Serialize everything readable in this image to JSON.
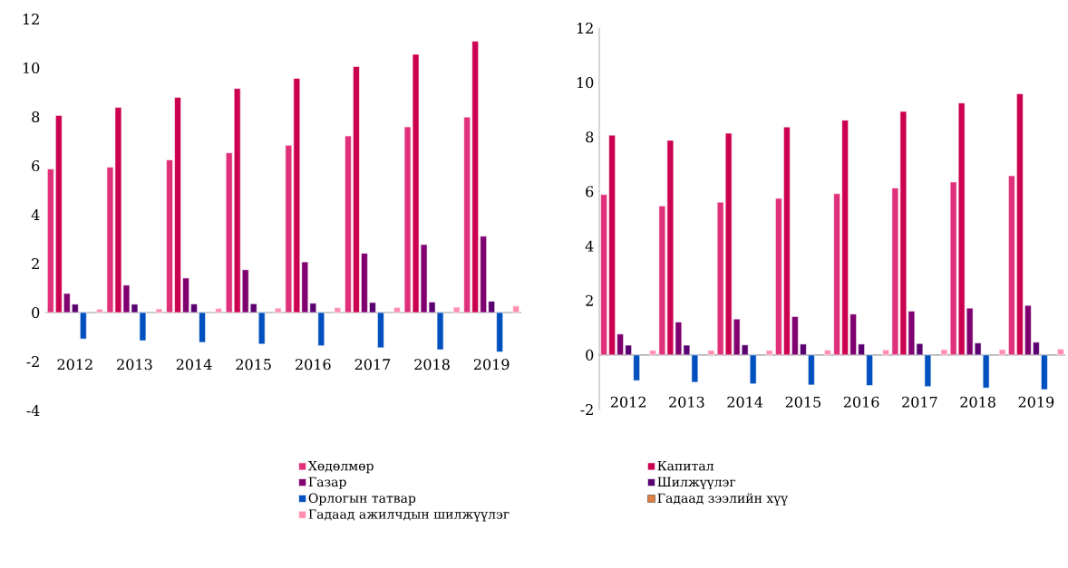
{
  "chart_data": [
    {
      "type": "bar",
      "categories": [
        "2012",
        "2013",
        "2014",
        "2015",
        "2016",
        "2017",
        "2018",
        "2019"
      ],
      "ylim": [
        -4,
        12
      ],
      "yticks": [
        -4,
        -2,
        0,
        2,
        4,
        6,
        8,
        10,
        12
      ],
      "legend": "bottom",
      "series": [
        {
          "name": "Хөдөлмөр",
          "color": "#e0307a",
          "values": [
            5.87,
            5.94,
            6.24,
            6.53,
            6.84,
            7.22,
            7.59,
            7.99
          ]
        },
        {
          "name": "Капитал",
          "color": "#cc0050",
          "values": [
            8.06,
            8.39,
            8.8,
            9.16,
            9.57,
            10.06,
            10.56,
            11.09
          ]
        },
        {
          "name": "Газар",
          "color": "#800070",
          "values": [
            0.78,
            1.12,
            1.41,
            1.75,
            2.07,
            2.42,
            2.78,
            3.12
          ]
        },
        {
          "name": "Шилжүүлэг",
          "color": "#5a0070",
          "values": [
            0.34,
            0.34,
            0.35,
            0.36,
            0.38,
            0.41,
            0.43,
            0.46
          ]
        },
        {
          "name": "Орлогын татвар",
          "color": "#0050c0",
          "values": [
            -1.08,
            -1.15,
            -1.22,
            -1.29,
            -1.36,
            -1.44,
            -1.52,
            -1.61
          ]
        },
        {
          "name": "Гадаад зээлийн хүү",
          "color": "#e08040",
          "values": [
            null,
            null,
            null,
            null,
            null,
            null,
            null,
            null
          ]
        },
        {
          "name": "Гадаад ажилчдын шилжүүлэг",
          "color": "#ff8fb0",
          "values": [
            0.14,
            0.15,
            0.17,
            0.18,
            0.2,
            0.21,
            0.22,
            0.27
          ]
        }
      ]
    },
    {
      "type": "bar",
      "categories": [
        "2012",
        "2013",
        "2014",
        "2015",
        "2016",
        "2017",
        "2018",
        "2019"
      ],
      "ylim": [
        -2,
        12
      ],
      "yticks": [
        -2,
        0,
        2,
        4,
        6,
        8,
        10,
        12
      ],
      "series": [
        {
          "color": "#e0307a",
          "values": [
            5.89,
            5.47,
            5.61,
            5.75,
            5.92,
            6.13,
            6.35,
            6.58
          ]
        },
        {
          "color": "#cc0050",
          "values": [
            8.07,
            7.88,
            8.14,
            8.37,
            8.62,
            8.94,
            9.25,
            9.59
          ]
        },
        {
          "color": "#800070",
          "values": [
            0.77,
            1.21,
            1.32,
            1.41,
            1.5,
            1.61,
            1.72,
            1.82
          ]
        },
        {
          "color": "#5a0070",
          "values": [
            0.36,
            0.36,
            0.37,
            0.4,
            0.4,
            0.42,
            0.44,
            0.47
          ]
        },
        {
          "color": "#0050c0",
          "values": [
            -0.94,
            -1.0,
            -1.06,
            -1.1,
            -1.12,
            -1.16,
            -1.21,
            -1.27
          ]
        },
        {
          "color": "#e08040",
          "values": [
            null,
            null,
            null,
            null,
            null,
            null,
            null,
            null
          ]
        },
        {
          "color": "#ff8fb0",
          "values": [
            0.17,
            0.17,
            0.17,
            0.18,
            0.19,
            0.2,
            0.2,
            0.22
          ]
        }
      ]
    }
  ]
}
